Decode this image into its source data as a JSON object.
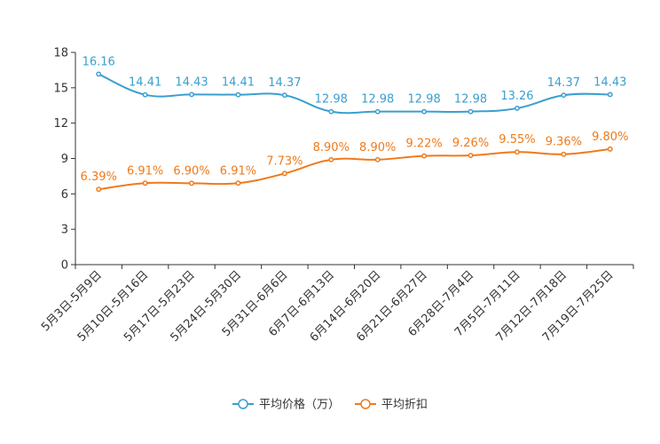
{
  "chart_data": {
    "type": "line",
    "categories": [
      "5月3日-5月9日",
      "5月10日-5月16日",
      "5月17日-5月23日",
      "5月24日-5月30日",
      "5月31日-6月6日",
      "6月7日-6月13日",
      "6月14日-6月20日",
      "6月21日-6月27日",
      "6月28日-7月4日",
      "7月5日-7月11日",
      "7月12日-7月18日",
      "7月19日-7月25日"
    ],
    "series": [
      {
        "name": "平均价格（万）",
        "color": "#3a9fd0",
        "values": [
          16.16,
          14.41,
          14.43,
          14.41,
          14.37,
          12.98,
          12.98,
          12.98,
          12.98,
          13.26,
          14.37,
          14.43
        ],
        "labels": [
          "16.16",
          "14.41",
          "14.43",
          "14.41",
          "14.37",
          "12.98",
          "12.98",
          "12.98",
          "12.98",
          "13.26",
          "14.37",
          "14.43"
        ]
      },
      {
        "name": "平均折扣",
        "color": "#f07a1a",
        "values": [
          6.39,
          6.91,
          6.9,
          6.91,
          7.73,
          8.9,
          8.9,
          9.22,
          9.26,
          9.55,
          9.36,
          9.8
        ],
        "labels": [
          "6.39%",
          "6.91%",
          "6.90%",
          "6.91%",
          "7.73%",
          "8.90%",
          "8.90%",
          "9.22%",
          "9.26%",
          "9.55%",
          "9.36%",
          "9.80%"
        ]
      }
    ],
    "yticks": [
      "0",
      "3",
      "6",
      "9",
      "12",
      "15",
      "18"
    ],
    "ylim": [
      0,
      18
    ],
    "legend_position": "bottom-center",
    "title": "",
    "xlabel": "",
    "ylabel": ""
  }
}
